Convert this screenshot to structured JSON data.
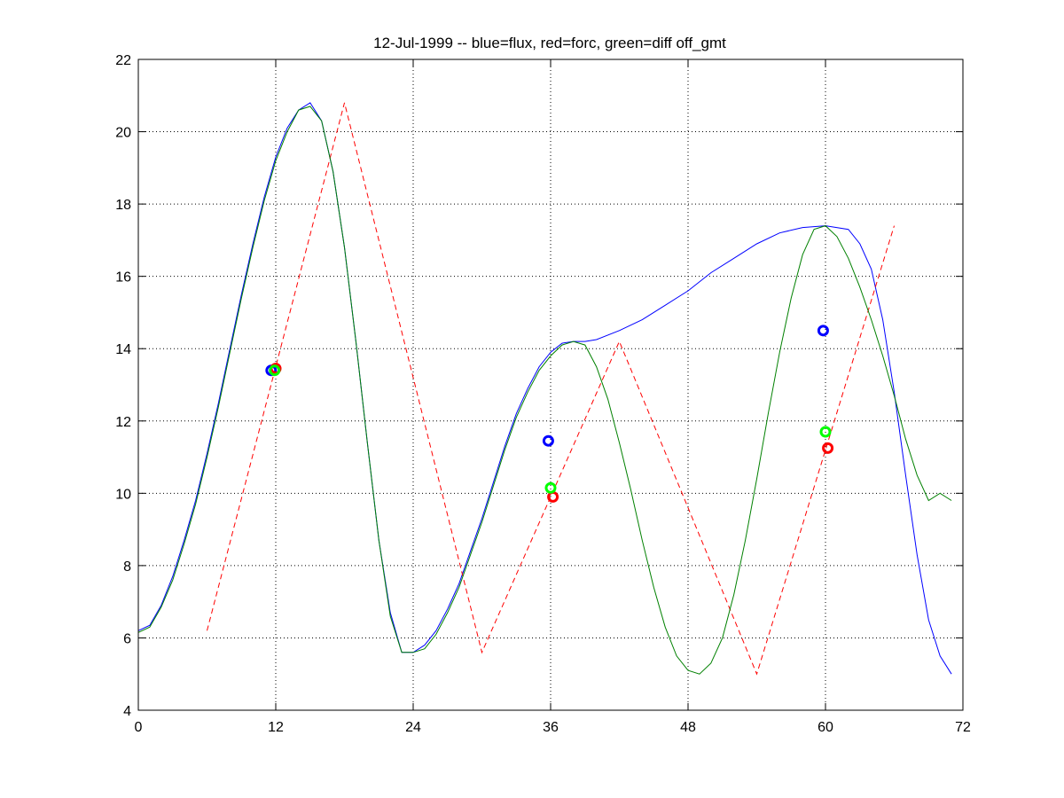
{
  "chart_data": {
    "type": "line",
    "title": "12-Jul-1999 -- blue=flux, red=forc, green=diff off_gmt",
    "xlabel": "",
    "ylabel": "",
    "xlim": [
      0,
      72
    ],
    "ylim": [
      4,
      22
    ],
    "xticks": [
      0,
      12,
      24,
      36,
      48,
      60,
      72
    ],
    "yticks": [
      4,
      6,
      8,
      10,
      12,
      14,
      16,
      18,
      20,
      22
    ],
    "grid": true,
    "colors": {
      "flux": "#0000ff",
      "forc": "#ff0000",
      "diff": "#008000",
      "diff_marker": "#00ff00",
      "axes": "#000000"
    },
    "series": [
      {
        "name": "flux",
        "color": "#0000ff",
        "style": "solid",
        "x": [
          0,
          1,
          2,
          3,
          4,
          5,
          6,
          7,
          8,
          9,
          10,
          11,
          12,
          13,
          14,
          15,
          16,
          17,
          18,
          19,
          20,
          21,
          22,
          23,
          24,
          25,
          26,
          27,
          28,
          29,
          30,
          31,
          32,
          33,
          34,
          35,
          36,
          37,
          38,
          39,
          40,
          42,
          44,
          46,
          48,
          50,
          52,
          54,
          56,
          58,
          60,
          62,
          63,
          64,
          65,
          66,
          67,
          68,
          69,
          70,
          71
        ],
        "y": [
          6.2,
          6.35,
          6.9,
          7.7,
          8.7,
          9.8,
          11.1,
          12.5,
          14.0,
          15.5,
          16.9,
          18.2,
          19.3,
          20.1,
          20.6,
          20.8,
          20.3,
          18.9,
          16.8,
          14.2,
          11.4,
          8.7,
          6.7,
          5.6,
          5.6,
          5.8,
          6.2,
          6.8,
          7.5,
          8.4,
          9.3,
          10.3,
          11.3,
          12.2,
          12.9,
          13.5,
          13.9,
          14.15,
          14.2,
          14.2,
          14.25,
          14.5,
          14.8,
          15.2,
          15.6,
          16.1,
          16.5,
          16.9,
          17.2,
          17.35,
          17.4,
          17.3,
          16.9,
          16.2,
          14.8,
          12.8,
          10.5,
          8.3,
          6.5,
          5.5,
          5.0
        ]
      },
      {
        "name": "forc",
        "color": "#ff0000",
        "style": "dashed",
        "x": [
          6,
          18,
          30,
          42,
          54,
          66
        ],
        "y": [
          6.2,
          20.8,
          5.6,
          14.2,
          5.0,
          17.4
        ]
      },
      {
        "name": "diff",
        "color": "#008000",
        "style": "solid",
        "x": [
          0,
          1,
          2,
          3,
          4,
          5,
          6,
          7,
          8,
          9,
          10,
          11,
          12,
          13,
          14,
          15,
          16,
          17,
          18,
          19,
          20,
          21,
          22,
          23,
          24,
          25,
          26,
          27,
          28,
          29,
          30,
          31,
          32,
          33,
          34,
          35,
          36,
          37,
          38,
          39,
          40,
          41,
          42,
          43,
          44,
          45,
          46,
          47,
          48,
          49,
          50,
          51,
          52,
          53,
          54,
          55,
          56,
          57,
          58,
          59,
          60,
          61,
          62,
          63,
          64,
          65,
          66,
          67,
          68,
          69,
          70,
          71
        ],
        "y": [
          6.15,
          6.3,
          6.85,
          7.6,
          8.6,
          9.7,
          11.0,
          12.4,
          13.9,
          15.4,
          16.8,
          18.1,
          19.2,
          20.0,
          20.6,
          20.7,
          20.3,
          18.9,
          16.8,
          14.2,
          11.4,
          8.7,
          6.6,
          5.6,
          5.6,
          5.7,
          6.1,
          6.7,
          7.4,
          8.3,
          9.2,
          10.2,
          11.2,
          12.1,
          12.8,
          13.4,
          13.8,
          14.1,
          14.2,
          14.1,
          13.5,
          12.6,
          11.4,
          10.1,
          8.7,
          7.4,
          6.3,
          5.5,
          5.1,
          5.0,
          5.3,
          6.0,
          7.2,
          8.7,
          10.4,
          12.2,
          13.9,
          15.4,
          16.6,
          17.3,
          17.4,
          17.1,
          16.5,
          15.7,
          14.8,
          13.8,
          12.7,
          11.5,
          10.5,
          9.8,
          10.0,
          9.8
        ]
      }
    ],
    "markers": [
      {
        "series": "flux",
        "color": "#0000ff",
        "points": [
          [
            11.6,
            13.4
          ],
          [
            35.8,
            11.45
          ],
          [
            59.8,
            14.5
          ]
        ]
      },
      {
        "series": "forc",
        "color": "#ff0000",
        "points": [
          [
            12.0,
            13.45
          ],
          [
            36.2,
            9.9
          ],
          [
            60.2,
            11.25
          ]
        ]
      },
      {
        "series": "diff",
        "color": "#00ff00",
        "points": [
          [
            11.9,
            13.4
          ],
          [
            36.0,
            10.15
          ],
          [
            60.0,
            11.7
          ]
        ]
      }
    ]
  }
}
